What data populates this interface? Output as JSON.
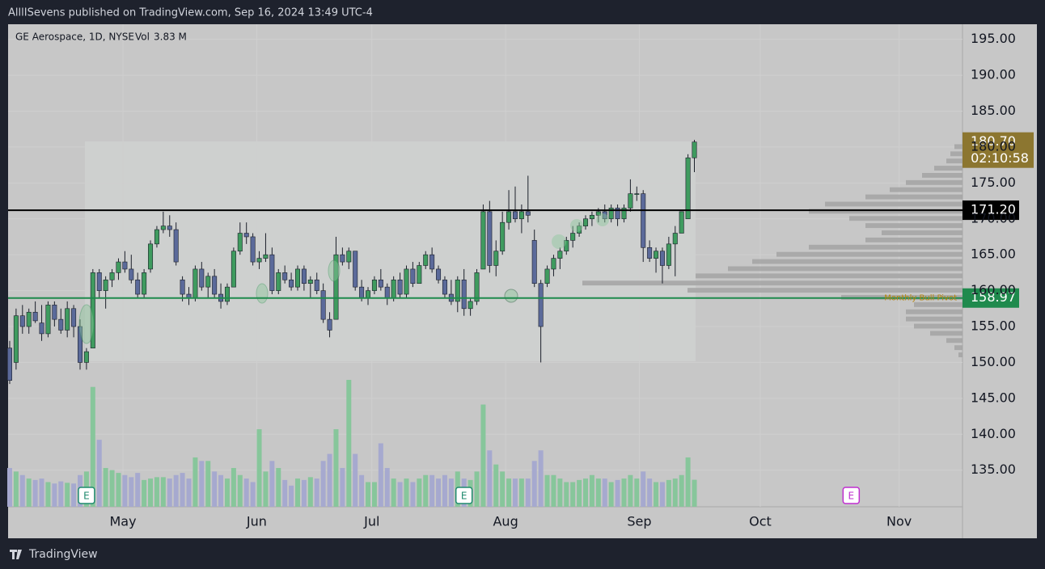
{
  "chart_data": {
    "type": "candlestick",
    "header": "AlllISevens published on TradingView.com, Sep 16, 2024 13:49 UTC-4",
    "symbol": "GE Aerospace, 1D, NYSE",
    "vol_prefix": "Vol",
    "vol_last_label": "3.83 M",
    "footer": "TradingView",
    "up_color": "#3f9b5f",
    "down_color": "#5b6a9a",
    "up_volume_color": "#87c69b",
    "down_volume_color": "#a6a9cf",
    "ylim": [
      129.9,
      197.1
    ],
    "xlim": [
      -0.25,
      148.9
    ],
    "yticks": [
      {
        "value": 135,
        "label": "135.00"
      },
      {
        "value": 140,
        "label": "140.00"
      },
      {
        "value": 145,
        "label": "145.00"
      },
      {
        "value": 150,
        "label": "150.00"
      },
      {
        "value": 155,
        "label": "155.00"
      },
      {
        "value": 160,
        "label": "160.00"
      },
      {
        "value": 165,
        "label": "165.00"
      },
      {
        "value": 170,
        "label": "170.00"
      },
      {
        "value": 175,
        "label": "175.00"
      },
      {
        "value": 180,
        "label": "180.00"
      },
      {
        "value": 185,
        "label": "185.00"
      },
      {
        "value": 190,
        "label": "190.00"
      },
      {
        "value": 195,
        "label": "195.00"
      }
    ],
    "xticks": [
      {
        "value": 17.7,
        "label": "May"
      },
      {
        "value": 38.6,
        "label": "Jun"
      },
      {
        "value": 56.6,
        "label": "Jul"
      },
      {
        "value": 77.5,
        "label": "Aug"
      },
      {
        "value": 98.4,
        "label": "Sep"
      },
      {
        "value": 117.3,
        "label": "Oct"
      },
      {
        "value": 139,
        "label": "Nov"
      }
    ],
    "open": [
      152,
      150,
      156.5,
      155,
      157,
      155.5,
      154,
      158,
      156,
      154.5,
      157.5,
      155,
      150,
      152,
      162.5,
      160,
      161.5,
      162.5,
      164,
      163,
      161.5,
      159.5,
      163,
      166.5,
      168.5,
      169,
      168.5,
      161.5,
      159.5,
      159,
      163,
      160.5,
      162,
      159.5,
      158.5,
      160.5,
      165.5,
      168,
      167.5,
      164,
      164.5,
      165,
      160,
      162.5,
      161.5,
      160.5,
      163,
      161,
      161.5,
      160,
      156,
      156,
      165,
      164,
      165.5,
      160.5,
      159,
      160,
      161.5,
      160.5,
      159,
      161.5,
      159.5,
      163,
      161,
      163.5,
      165,
      163,
      161.5,
      159.5,
      158.5,
      161.5,
      157.5,
      158.5,
      163,
      171,
      163.5,
      165.5,
      169.5,
      171,
      170,
      171,
      167,
      161,
      161,
      163,
      164.5,
      165.5,
      167,
      168,
      169,
      170,
      170.5,
      171,
      170,
      171.5,
      170,
      171.5,
      173.5,
      173.5,
      166,
      164.5,
      165.5,
      163.5,
      166.5,
      168,
      170,
      178.5
    ],
    "high": [
      153,
      157.5,
      158,
      157.5,
      158.5,
      158,
      158.5,
      158.5,
      157.5,
      158.5,
      158,
      156,
      152,
      163,
      163,
      162,
      163,
      164.5,
      165.5,
      165,
      162.5,
      163,
      167,
      169,
      171,
      170.5,
      169.5,
      162,
      160.5,
      163.5,
      164,
      162.5,
      163,
      161,
      161,
      166,
      169.5,
      169.5,
      168,
      165.5,
      168,
      166,
      163,
      163.5,
      162.5,
      163.5,
      163.5,
      162,
      162.5,
      161,
      157,
      167.5,
      166,
      166,
      165.5,
      161.5,
      160.5,
      162,
      163,
      161,
      162,
      162.5,
      163.5,
      164,
      164,
      165.5,
      166,
      163.5,
      162,
      161.5,
      162,
      163,
      159,
      163,
      172,
      172.5,
      167,
      171,
      174,
      174.5,
      172,
      176,
      168.5,
      161.5,
      163.5,
      165,
      166,
      167.5,
      169,
      169.5,
      170.5,
      171,
      171.5,
      172,
      172,
      172,
      172,
      175.5,
      174.5,
      174,
      167,
      166,
      166,
      167.5,
      169,
      171,
      179,
      181
    ],
    "low": [
      147,
      149,
      154,
      154,
      155.5,
      153,
      153.5,
      155,
      154,
      153.5,
      153.5,
      149,
      149,
      152,
      159,
      157.5,
      160.5,
      161.5,
      162.5,
      161,
      159,
      159,
      162.5,
      166,
      168,
      167.5,
      163.5,
      158.5,
      158,
      158.5,
      160,
      159,
      159,
      157.5,
      158,
      160.5,
      165,
      166.5,
      163.5,
      163,
      164,
      159.5,
      159.5,
      161,
      160,
      160,
      160,
      159,
      159.5,
      155.5,
      153.5,
      156,
      163.5,
      163,
      160,
      158.5,
      158,
      159.5,
      160,
      158,
      158.5,
      159,
      159,
      160.5,
      161,
      163,
      162.5,
      161,
      159,
      158,
      157,
      156.5,
      156.5,
      158,
      163,
      162.5,
      162,
      165,
      168.5,
      169.5,
      168,
      169.5,
      160.5,
      150,
      160.5,
      162,
      163,
      165,
      166,
      167.5,
      168.5,
      169,
      169.5,
      169.5,
      169.5,
      169,
      169.5,
      171,
      172.5,
      164,
      164,
      162.5,
      161,
      163,
      162,
      168,
      170,
      176.5
    ],
    "close": [
      147.5,
      156.5,
      155,
      157,
      155.8,
      154,
      158,
      156,
      154.5,
      157.5,
      155,
      150,
      151.5,
      162.5,
      160,
      161.5,
      162.5,
      164,
      163,
      161.5,
      159.5,
      162.5,
      166.5,
      168.5,
      169,
      168.5,
      164,
      159.5,
      159,
      163,
      160.5,
      162,
      159.5,
      158.5,
      160.5,
      165.5,
      168,
      167.5,
      164,
      164.5,
      165,
      160,
      162.5,
      161.5,
      160.5,
      163,
      161,
      161.5,
      160,
      156,
      154.5,
      165,
      164,
      165.5,
      160.5,
      159,
      160,
      161.5,
      160.5,
      159,
      161.5,
      159.5,
      163,
      161,
      163.5,
      165,
      163,
      161.5,
      159.5,
      158.5,
      161.5,
      157.5,
      158.5,
      162.5,
      171,
      163.5,
      165.5,
      169.5,
      171,
      170,
      171,
      170.5,
      161,
      155,
      163,
      164.5,
      165.5,
      167,
      168,
      169,
      170,
      170.5,
      171,
      170,
      171.5,
      170,
      171.5,
      173.5,
      173.5,
      166,
      164.5,
      165.5,
      163.5,
      166.5,
      168,
      171,
      178.5,
      180.7
    ],
    "volume": [
      5.5,
      5,
      4.5,
      4,
      3.8,
      4,
      3.5,
      3.3,
      3.6,
      3.4,
      3.3,
      4.5,
      5,
      17,
      9.5,
      5.5,
      5.2,
      4.8,
      4.5,
      4.2,
      4.8,
      3.8,
      4,
      4.2,
      4.2,
      4,
      4.5,
      4.8,
      4,
      7,
      6.5,
      6.5,
      5,
      4.5,
      4,
      5.5,
      4.5,
      4,
      3.5,
      11,
      5,
      6.5,
      5.5,
      3.8,
      3,
      4,
      3.8,
      4.2,
      4,
      6.5,
      7.5,
      11,
      5.5,
      18,
      7.5,
      4.5,
      3.5,
      3.5,
      9,
      5.5,
      4,
      3.5,
      4,
      3.5,
      4,
      4.5,
      4.5,
      4,
      4.5,
      4,
      5,
      4,
      3.8,
      5,
      14.5,
      8,
      6,
      5,
      4,
      4,
      4,
      4,
      6.5,
      8,
      4.5,
      4.5,
      4,
      3.5,
      3.5,
      3.8,
      4,
      4.5,
      4,
      4,
      3.5,
      3.8,
      4,
      4.5,
      4,
      5,
      4,
      3.5,
      3.5,
      3.8,
      4,
      4.5,
      7,
      3.83
    ],
    "last_price_label": "180.70",
    "countdown": "02:10:58",
    "levels": [
      {
        "value": 171.2,
        "label": "171.20",
        "color": "#000000"
      },
      {
        "value": 158.97,
        "label": "158.97",
        "color": "#1f8a4d",
        "name": "Monthly Bull Pivot"
      }
    ],
    "earnings": [
      {
        "index": 12,
        "label": "E",
        "color": "#1f8a6e"
      },
      {
        "index": 71,
        "label": "E",
        "color": "#1f8a6e"
      },
      {
        "index": 131.5,
        "label": "E",
        "color": "#c02fd0"
      }
    ],
    "volume_profile": {
      "prices": [
        151,
        152,
        153,
        154,
        155,
        156,
        157,
        158,
        159,
        160,
        161,
        162,
        163,
        164,
        165,
        166,
        167,
        168,
        169,
        170,
        171,
        172,
        173,
        174,
        175,
        176,
        177,
        178,
        179,
        180
      ],
      "values": [
        5,
        10,
        20,
        40,
        60,
        70,
        70,
        60,
        150,
        340,
        470,
        330,
        290,
        260,
        230,
        190,
        120,
        100,
        120,
        140,
        190,
        170,
        120,
        90,
        70,
        50,
        35,
        20,
        15,
        10
      ]
    }
  }
}
